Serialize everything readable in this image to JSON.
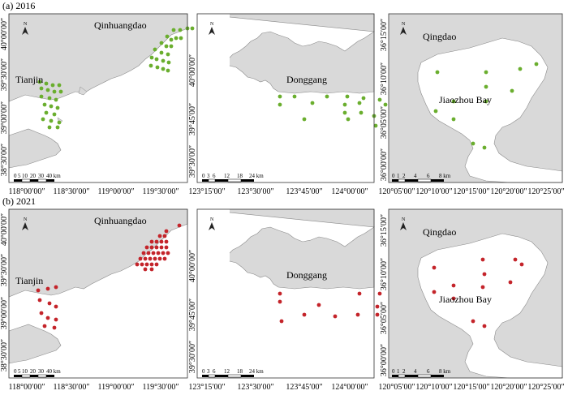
{
  "rows": [
    {
      "label": "(a) 2016",
      "dot_color": "#6aae2e",
      "panels": [
        {
          "id": "qinhuangdao-tianjin",
          "cities": [
            "Qinhuangdao",
            "Tianjin"
          ],
          "x_ticks": [
            "118°00′00″",
            "118°30′00″",
            "119°00′00″",
            "119°30′00″"
          ],
          "y_ticks": [
            "40°00′00″",
            "39°30′00″",
            "39°00′00″",
            "38°30′00″"
          ],
          "scale_labels": [
            "0",
            "5",
            "10",
            "20",
            "30",
            "40 km"
          ],
          "stations": [
            [
              203,
              20
            ],
            [
              211,
              20
            ],
            [
              220,
              18
            ],
            [
              226,
              18
            ],
            [
              195,
              28
            ],
            [
              200,
              32
            ],
            [
              206,
              30
            ],
            [
              212,
              30
            ],
            [
              188,
              36
            ],
            [
              194,
              40
            ],
            [
              200,
              40
            ],
            [
              180,
              44
            ],
            [
              188,
              48
            ],
            [
              196,
              50
            ],
            [
              176,
              54
            ],
            [
              182,
              56
            ],
            [
              190,
              58
            ],
            [
              197,
              60
            ],
            [
              175,
              64
            ],
            [
              183,
              66
            ],
            [
              190,
              68
            ],
            [
              196,
              70
            ],
            [
              38,
              84
            ],
            [
              46,
              86
            ],
            [
              54,
              88
            ],
            [
              62,
              88
            ],
            [
              40,
              92
            ],
            [
              48,
              94
            ],
            [
              56,
              96
            ],
            [
              64,
              96
            ],
            [
              40,
              102
            ],
            [
              50,
              104
            ],
            [
              58,
              106
            ],
            [
              44,
              112
            ],
            [
              52,
              114
            ],
            [
              60,
              116
            ],
            [
              46,
              122
            ],
            [
              56,
              124
            ],
            [
              42,
              130
            ],
            [
              52,
              132
            ],
            [
              62,
              134
            ],
            [
              50,
              140
            ],
            [
              60,
              140
            ]
          ]
        },
        {
          "id": "donggang",
          "cities": [
            "Donggang"
          ],
          "x_ticks": [
            "123°15′00″",
            "123°30′00″",
            "123°45′00″",
            "124°00′00″"
          ],
          "y_ticks": [
            "40°00′00″",
            "39°45′00″",
            "39°30′00″"
          ],
          "scale_labels": [
            "0",
            "3",
            "6",
            "12",
            "18",
            "24 km"
          ],
          "stations": [
            [
              102,
              102
            ],
            [
              120,
              102
            ],
            [
              160,
              102
            ],
            [
              185,
              102
            ],
            [
              205,
              104
            ],
            [
              225,
              106
            ],
            [
              102,
              112
            ],
            [
              142,
              110
            ],
            [
              182,
              112
            ],
            [
              200,
              110
            ],
            [
              232,
              112
            ],
            [
              250,
              108
            ],
            [
              132,
              130
            ],
            [
              182,
              122
            ],
            [
              202,
              122
            ],
            [
              218,
              126
            ],
            [
              186,
              130
            ],
            [
              220,
              138
            ]
          ]
        },
        {
          "id": "qingdao-jiaozhou",
          "cities": [
            "Qingdao",
            "Jiaozhou Bay"
          ],
          "x_ticks": [
            "120°05′00″",
            "120°10′00″",
            "120°15′00″",
            "120°20′00″",
            "120°25′00″"
          ],
          "y_ticks": [
            "36°15′00″",
            "36°10′00″",
            "36°05′00″",
            "36°00′00″"
          ],
          "scale_labels": [
            "0",
            "1",
            "2",
            "4",
            "6",
            "8 km"
          ],
          "stations": [
            [
              60,
              72
            ],
            [
              120,
              72
            ],
            [
              162,
              68
            ],
            [
              182,
              62
            ],
            [
              120,
              90
            ],
            [
              152,
              95
            ],
            [
              80,
              108
            ],
            [
              120,
              108
            ],
            [
              58,
              120
            ],
            [
              80,
              130
            ],
            [
              104,
              160
            ],
            [
              118,
              165
            ]
          ]
        }
      ]
    },
    {
      "label": "(b) 2021",
      "dot_color": "#c4242a",
      "panels": [
        {
          "id": "qinhuangdao-tianjin",
          "cities": [
            "Qinhuangdao",
            "Tianjin"
          ],
          "x_ticks": [
            "118°00′00″",
            "118°30′00″",
            "119°00′00″",
            "119°30′00″"
          ],
          "y_ticks": [
            "40°00′00″",
            "39°30′00″",
            "39°00′00″",
            "38°30′00″"
          ],
          "scale_labels": [
            "0",
            "5",
            "10",
            "20",
            "30",
            "40 km"
          ],
          "stations": [
            [
              210,
              20
            ],
            [
              194,
              27
            ],
            [
              186,
              33
            ],
            [
              192,
              33
            ],
            [
              176,
              40
            ],
            [
              182,
              40
            ],
            [
              188,
              40
            ],
            [
              194,
              40
            ],
            [
              170,
              47
            ],
            [
              176,
              47
            ],
            [
              182,
              47
            ],
            [
              188,
              47
            ],
            [
              194,
              47
            ],
            [
              166,
              54
            ],
            [
              172,
              54
            ],
            [
              178,
              54
            ],
            [
              184,
              54
            ],
            [
              190,
              54
            ],
            [
              196,
              54
            ],
            [
              162,
              61
            ],
            [
              168,
              61
            ],
            [
              174,
              61
            ],
            [
              180,
              61
            ],
            [
              186,
              61
            ],
            [
              192,
              61
            ],
            [
              158,
              68
            ],
            [
              164,
              68
            ],
            [
              170,
              68
            ],
            [
              176,
              68
            ],
            [
              182,
              68
            ],
            [
              168,
              74
            ],
            [
              176,
              74
            ],
            [
              36,
              100
            ],
            [
              48,
              98
            ],
            [
              58,
              96
            ],
            [
              38,
              112
            ],
            [
              50,
              116
            ],
            [
              58,
              120
            ],
            [
              40,
              128
            ],
            [
              48,
              134
            ],
            [
              58,
              136
            ],
            [
              44,
              144
            ],
            [
              56,
              146
            ]
          ]
        },
        {
          "id": "donggang",
          "cities": [
            "Donggang"
          ],
          "x_ticks": [
            "123°15′00″",
            "123°30′00″",
            "123°45′00″",
            "124°00′00″"
          ],
          "y_ticks": [
            "40°00′00″",
            "39°45′00″",
            "39°30′00″"
          ],
          "scale_labels": [
            "0",
            "3",
            "6",
            "12",
            "18",
            "24 km"
          ],
          "stations": [
            [
              102,
              104
            ],
            [
              200,
              104
            ],
            [
              225,
              104
            ],
            [
              102,
              114
            ],
            [
              150,
              118
            ],
            [
              222,
              120
            ],
            [
              246,
              116
            ],
            [
              132,
              130
            ],
            [
              104,
              138
            ],
            [
              170,
              132
            ],
            [
              198,
              130
            ],
            [
              222,
              130
            ]
          ]
        },
        {
          "id": "qingdao-jiaozhou",
          "cities": [
            "Qingdao",
            "Jiaozhou Bay"
          ],
          "x_ticks": [
            "120°05′00″",
            "120°10′00″",
            "120°15′00″",
            "120°20′00″",
            "120°25′00″"
          ],
          "y_ticks": [
            "36°15′00″",
            "36°10′00″",
            "36°05′00″",
            "36°00′00″"
          ],
          "scale_labels": [
            "0",
            "1",
            "2",
            "4",
            "6",
            "8 km"
          ],
          "stations": [
            [
              116,
              62
            ],
            [
              156,
              62
            ],
            [
              164,
              68
            ],
            [
              56,
              72
            ],
            [
              118,
              80
            ],
            [
              150,
              90
            ],
            [
              80,
              94
            ],
            [
              116,
              96
            ],
            [
              56,
              102
            ],
            [
              80,
              110
            ],
            [
              104,
              138
            ],
            [
              118,
              144
            ]
          ]
        }
      ]
    }
  ]
}
